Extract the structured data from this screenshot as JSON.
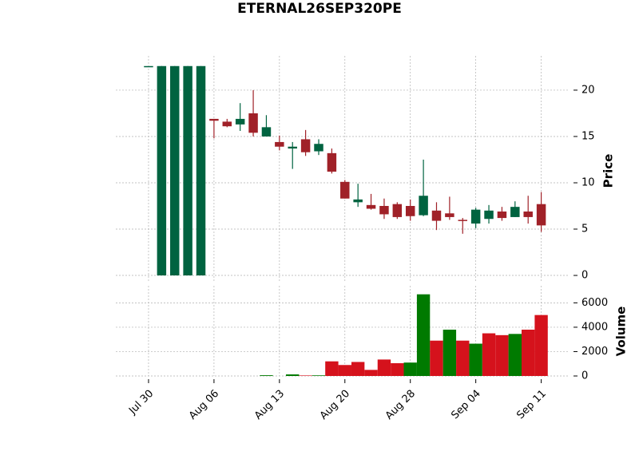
{
  "chart_data": {
    "type": "candlestick",
    "title": "ETERNAL26SEP320PE",
    "categories": [
      "Jul 30",
      null,
      null,
      null,
      null,
      "Aug 06",
      null,
      null,
      null,
      null,
      "Aug 13",
      null,
      null,
      null,
      null,
      "Aug 20",
      null,
      null,
      null,
      null,
      "Aug 28",
      null,
      null,
      null,
      null,
      "Sep 04",
      null,
      null,
      null,
      null,
      "Sep 11"
    ],
    "open": [
      22.6,
      0,
      0,
      0,
      0,
      16.9,
      16.6,
      16.3,
      17.5,
      15.0,
      14.4,
      13.7,
      14.7,
      13.4,
      13.2,
      10.1,
      7.9,
      7.6,
      7.5,
      7.7,
      7.5,
      6.5,
      7.0,
      6.7,
      6.0,
      5.6,
      6.1,
      6.9,
      6.3,
      6.9,
      7.7
    ],
    "high": [
      22.6,
      22.6,
      22.6,
      22.6,
      22.6,
      16.9,
      16.9,
      18.6,
      20.0,
      17.3,
      15.1,
      14.4,
      15.7,
      14.7,
      13.7,
      10.3,
      9.9,
      8.8,
      8.3,
      7.9,
      8.2,
      12.5,
      7.9,
      8.5,
      6.2,
      7.3,
      7.6,
      7.4,
      8.0,
      8.6,
      9.0
    ],
    "low": [
      22.6,
      0,
      0,
      0,
      0,
      14.8,
      16.0,
      15.6,
      15.0,
      15.0,
      13.5,
      11.5,
      12.9,
      13.0,
      11.0,
      8.3,
      7.4,
      7.1,
      6.1,
      6.1,
      5.9,
      6.4,
      4.9,
      6.0,
      4.5,
      5.1,
      5.6,
      5.9,
      6.3,
      5.6,
      4.7
    ],
    "close": [
      22.6,
      22.6,
      22.6,
      22.6,
      22.6,
      16.7,
      16.1,
      16.9,
      15.4,
      16.0,
      13.9,
      13.9,
      13.3,
      14.2,
      11.2,
      8.3,
      8.2,
      7.2,
      6.6,
      6.3,
      6.4,
      8.6,
      5.9,
      6.3,
      5.9,
      7.1,
      7.0,
      6.2,
      7.4,
      6.3,
      5.4
    ],
    "volume": [
      0,
      0,
      0,
      0,
      0,
      0,
      0,
      0,
      0,
      60,
      0,
      130,
      40,
      50,
      1200,
      900,
      1150,
      500,
      1350,
      1050,
      1100,
      6700,
      2900,
      3800,
      2900,
      2650,
      3500,
      3350,
      3450,
      3800,
      5000
    ],
    "up_color": "#006340",
    "down_color": "#a02128",
    "volume_up_color": "#007a00",
    "volume_down_color": "#d5121c",
    "ylabel": "Price",
    "y2label": "Volume",
    "ylim": [
      -0.6,
      23.7
    ],
    "yticks": [
      0,
      5,
      10,
      15,
      20
    ],
    "y2lim": [
      0,
      7400
    ],
    "y2ticks": [
      0,
      2000,
      4000,
      6000
    ],
    "xlim": [
      -2.5,
      32.1
    ],
    "grid": true
  }
}
